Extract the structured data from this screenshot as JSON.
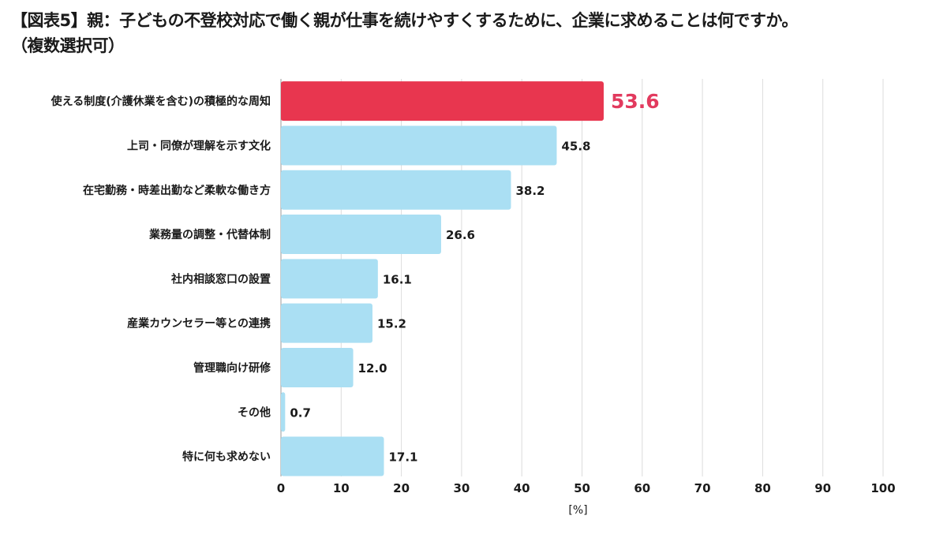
{
  "title": {
    "line1": "【図表5】親：子どもの不登校対応で働く親が仕事を続けやすくするために、企業に求めることは何ですか。",
    "line2": "（複数選択可）"
  },
  "colors": {
    "highlight": "#e8364f",
    "bar": "#aadff3",
    "highlight_label": "#e23a5e",
    "grid": "#dcdcdc",
    "text": "#1a1a1a"
  },
  "chart_data": {
    "type": "bar",
    "orientation": "horizontal",
    "categories": [
      "使える制度(介護休業を含む)の積極的な周知",
      "上司・同僚が理解を示す文化",
      "在宅勤務・時差出勤など柔軟な働き方",
      "業務量の調整・代替体制",
      "社内相談窓口の設置",
      "産業カウンセラー等との連携",
      "管理職向け研修",
      "その他",
      "特に何も求めない"
    ],
    "values": [
      53.6,
      45.8,
      38.2,
      26.6,
      16.1,
      15.2,
      12.0,
      0.7,
      17.1
    ],
    "value_labels": [
      "53.6",
      "45.8",
      "38.2",
      "26.6",
      "16.1",
      "15.2",
      "12.0",
      "0.7",
      "17.1"
    ],
    "highlighted_index": 0,
    "xlim": [
      0,
      100
    ],
    "xticks": [
      "0",
      "10",
      "20",
      "30",
      "40",
      "50",
      "60",
      "70",
      "80",
      "90",
      "100"
    ],
    "xlabel": "[%]",
    "grid": true
  }
}
